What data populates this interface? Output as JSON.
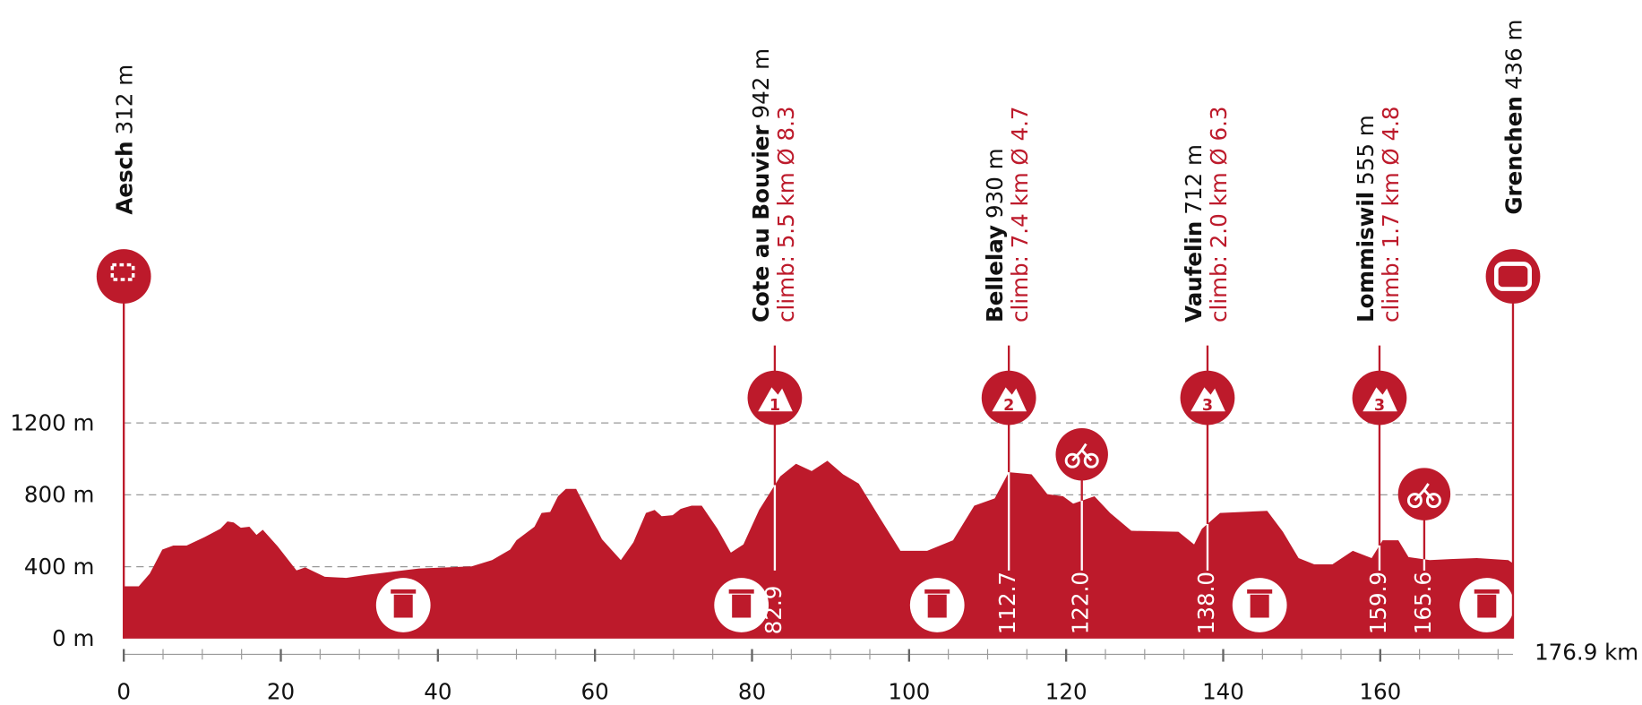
{
  "chart_data": {
    "type": "area",
    "color": "#bd1a2b",
    "x": [
      0,
      1.9,
      3.3,
      4.9,
      6.3,
      8,
      10.3,
      12.3,
      13.2,
      14,
      14.9,
      16,
      16.9,
      17.7,
      19.6,
      22,
      23.1,
      25.6,
      28.3,
      30.9,
      37.6,
      44.3,
      46.9,
      49.2,
      50,
      52.3,
      53.2,
      54.3,
      55.3,
      56.3,
      57.6,
      58.9,
      60.9,
      63.3,
      64.9,
      66.5,
      67.6,
      68.5,
      69.9,
      70.9,
      72.3,
      73.6,
      75.6,
      77.3,
      78.9,
      80.9,
      83.6,
      85.6,
      87.6,
      89.6,
      91.6,
      93.6,
      96.3,
      98.9,
      102.3,
      105.6,
      108.3,
      110.9,
      112.7,
      115.6,
      117.6,
      119.6,
      120.9,
      123.6,
      125.6,
      128.3,
      134.3,
      136.3,
      137.3,
      139.6,
      145.6,
      147.6,
      149.6,
      151.6,
      153.9,
      156.5,
      158.9,
      160.3,
      162.3,
      163.6,
      166.3,
      168.9,
      172.3,
      176.3,
      176.9
    ],
    "values": [
      291,
      291,
      361,
      495,
      518,
      518,
      565,
      611,
      652,
      646,
      617,
      623,
      577,
      606,
      513,
      379,
      396,
      344,
      338,
      355,
      390,
      402,
      437,
      495,
      547,
      623,
      699,
      705,
      792,
      833,
      833,
      722,
      553,
      437,
      536,
      699,
      716,
      681,
      687,
      722,
      740,
      740,
      611,
      478,
      524,
      716,
      903,
      973,
      932,
      990,
      914,
      862,
      670,
      489,
      489,
      547,
      740,
      780,
      926,
      914,
      804,
      792,
      751,
      792,
      699,
      600,
      594,
      524,
      611,
      699,
      711,
      594,
      448,
      413,
      413,
      489,
      448,
      547,
      547,
      454,
      437,
      443,
      448,
      437,
      419
    ],
    "xlim": [
      0,
      176.9
    ],
    "ylim": [
      0,
      1200
    ],
    "xticks": [
      0,
      20,
      40,
      60,
      80,
      100,
      120,
      140,
      160
    ],
    "yticks": [
      {
        "value": 0,
        "label": "0 m"
      },
      {
        "value": 400,
        "label": "400 m"
      },
      {
        "value": 800,
        "label": "800 m"
      },
      {
        "value": 1200,
        "label": "1200 m"
      }
    ],
    "distance_label": "176.9 km",
    "places": [
      {
        "km": 0,
        "name": "Aesch",
        "elevation": "312 m",
        "icon": "start"
      },
      {
        "km": 82.9,
        "name": "Cote au Bouvier",
        "elevation": "942 m",
        "climb": "climb: 5.5 km Ø 8.3",
        "category": "1"
      },
      {
        "km": 112.7,
        "name": "Bellelay",
        "elevation": "930 m",
        "climb": "climb: 7.4 km Ø 4.7",
        "category": "2"
      },
      {
        "km": 138.0,
        "name": "Vaufelin",
        "elevation": "712 m",
        "climb": "climb: 2.0 km Ø 6.3",
        "category": "3"
      },
      {
        "km": 159.9,
        "name": "Lommiswil",
        "elevation": "555 m",
        "climb": "climb: 1.7 km Ø 4.8",
        "category": "3"
      },
      {
        "km": 176.9,
        "name": "Grenchen",
        "elevation": "436 m",
        "icon": "finish"
      }
    ],
    "markers": [
      82.9,
      112.7,
      {
        "value": 122,
        "label": "122.0"
      },
      {
        "value": 138,
        "label": "138.0"
      },
      159.9,
      165.6
    ],
    "sprints": [
      122,
      165.6
    ]
  }
}
